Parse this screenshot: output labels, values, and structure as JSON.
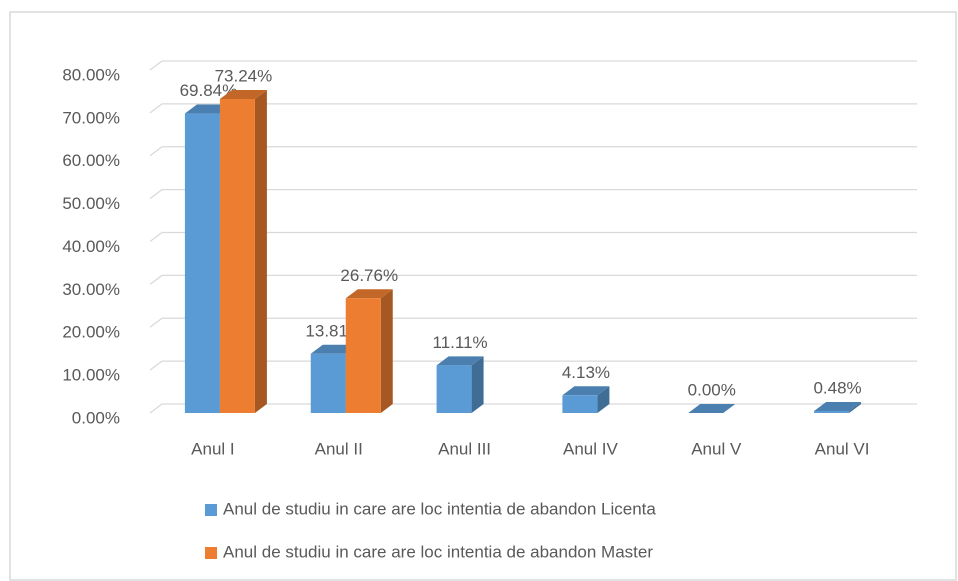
{
  "chart_data": {
    "type": "bar3d",
    "categories": [
      "Anul I",
      "Anul II",
      "Anul III",
      "Anul IV",
      "Anul V",
      "Anul VI"
    ],
    "series": [
      {
        "name": "Anul de studiu in care are loc intentia de abandon Licenta",
        "color": "#5b9bd5",
        "values": [
          69.84,
          13.81,
          11.11,
          4.13,
          0.0,
          0.48
        ],
        "value_labels": [
          "69.84%",
          "13.81%",
          "11.11%",
          "4.13%",
          "0.00%",
          "0.48%"
        ]
      },
      {
        "name": "Anul de studiu in care are loc intentia de abandon Master",
        "color": "#ed7d31",
        "values": [
          73.24,
          26.76,
          null,
          null,
          null,
          null
        ],
        "value_labels": [
          "73.24%",
          "26.76%",
          null,
          null,
          null,
          null
        ]
      }
    ],
    "ylim": [
      0,
      80
    ],
    "yticks": [
      {
        "value": 0,
        "label": "0.00%"
      },
      {
        "value": 10,
        "label": "10.00%"
      },
      {
        "value": 20,
        "label": "20.00%"
      },
      {
        "value": 30,
        "label": "30.00%"
      },
      {
        "value": 40,
        "label": "40.00%"
      },
      {
        "value": 50,
        "label": "50.00%"
      },
      {
        "value": 60,
        "label": "60.00%"
      },
      {
        "value": 70,
        "label": "70.00%"
      },
      {
        "value": 80,
        "label": "80.00%"
      }
    ],
    "grid": true,
    "legend": "bottom"
  }
}
